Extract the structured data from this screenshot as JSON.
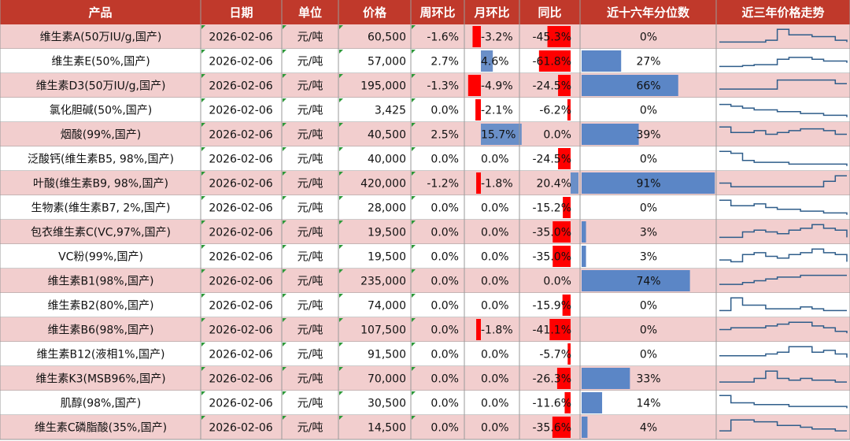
{
  "table": {
    "header": [
      "产品",
      "日期",
      "单位",
      "价格",
      "周环比",
      "月环比",
      "同比",
      "近十六年分位数",
      "近三年价格走势"
    ],
    "rows": [
      [
        "维生素A(50万IU/g,国产)",
        "2026-02-06",
        "元/吨",
        "60,500",
        "-1.6%",
        "-3.2%",
        "-45.3%",
        "0%"
      ],
      [
        "维生素E(50%,国产)",
        "2026-02-06",
        "元/吨",
        "57,000",
        "2.7%",
        "4.6%",
        "-61.8%",
        "27%"
      ],
      [
        "维生素D3(50万IU/g,国产)",
        "2026-02-06",
        "元/吨",
        "195,000",
        "-1.3%",
        "-4.9%",
        "-24.5%",
        "66%"
      ],
      [
        "氯化胆碱(50%,国产)",
        "2026-02-06",
        "元/吨",
        "3,425",
        "0.0%",
        "-2.1%",
        "-6.2%",
        "0%"
      ],
      [
        "烟酸(99%,国产)",
        "2026-02-06",
        "元/吨",
        "40,500",
        "2.5%",
        "15.7%",
        "0.0%",
        "39%"
      ],
      [
        "泛酸钙(维生素B5, 98%,国产)",
        "2026-02-06",
        "元/吨",
        "40,000",
        "0.0%",
        "0.0%",
        "-24.5%",
        "0%"
      ],
      [
        "叶酸(维生素B9, 98%,国产)",
        "2026-02-06",
        "元/吨",
        "420,000",
        "-1.2%",
        "-1.8%",
        "20.4%",
        "91%"
      ],
      [
        "生物素(维生素B7, 2%,国产)",
        "2026-02-06",
        "元/吨",
        "28,000",
        "0.0%",
        "0.0%",
        "-15.2%",
        "0%"
      ],
      [
        "包衣维生素C(VC,97%,国产)",
        "2026-02-06",
        "元/吨",
        "19,500",
        "0.0%",
        "0.0%",
        "-35.0%",
        "3%"
      ],
      [
        "VC粉(99%,国产)",
        "2026-02-06",
        "元/吨",
        "19,500",
        "0.0%",
        "0.0%",
        "-35.0%",
        "3%"
      ],
      [
        "维生素B1(98%,国产)",
        "2026-02-06",
        "元/吨",
        "235,000",
        "0.0%",
        "0.0%",
        "0.0%",
        "74%"
      ],
      [
        "维生素B2(80%,国产)",
        "2026-02-06",
        "元/吨",
        "74,000",
        "0.0%",
        "0.0%",
        "-15.9%",
        "0%"
      ],
      [
        "维生素B6(98%,国产)",
        "2026-02-06",
        "元/吨",
        "107,500",
        "0.0%",
        "-1.8%",
        "-41.1%",
        "0%"
      ],
      [
        "维生素B12(液相1%,国产)",
        "2026-02-06",
        "元/吨",
        "91,500",
        "0.0%",
        "0.0%",
        "-5.7%",
        "0%"
      ],
      [
        "维生素K3(MSB96%,国产)",
        "2026-02-06",
        "元/吨",
        "70,000",
        "0.0%",
        "0.0%",
        "-26.3%",
        "33%"
      ],
      [
        "肌醇(98%,国产)",
        "2026-02-06",
        "元/吨",
        "30,500",
        "0.0%",
        "0.0%",
        "-11.6%",
        "14%"
      ],
      [
        "维生素C磷脂酸(35%,国产)",
        "2026-02-06",
        "元/吨",
        "14,500",
        "0.0%",
        "0.0%",
        "-35.6%",
        "4%"
      ]
    ],
    "trends": [
      [
        0.2,
        0.2,
        0.2,
        0.2,
        0.3,
        0.9,
        0.6,
        0.6,
        0.5,
        0.5,
        0.3,
        0.2
      ],
      [
        0.2,
        0.2,
        0.25,
        0.3,
        0.3,
        0.6,
        0.7,
        0.7,
        0.6,
        0.5,
        0.5,
        0.4
      ],
      [
        0.3,
        0.3,
        0.3,
        0.3,
        0.3,
        0.8,
        0.8,
        0.8,
        0.8,
        0.8,
        0.6,
        0.6
      ],
      [
        0.8,
        0.7,
        0.6,
        0.5,
        0.5,
        0.4,
        0.4,
        0.3,
        0.3,
        0.2,
        0.2,
        0.1
      ],
      [
        0.9,
        0.6,
        0.6,
        0.7,
        0.5,
        0.6,
        0.7,
        0.8,
        0.8,
        0.7,
        0.5,
        0.5
      ],
      [
        0.9,
        0.8,
        0.4,
        0.3,
        0.3,
        0.3,
        0.2,
        0.2,
        0.2,
        0.2,
        0.2,
        0.1
      ],
      [
        0.5,
        0.3,
        0.3,
        0.3,
        0.3,
        0.3,
        0.3,
        0.3,
        0.3,
        0.6,
        0.9,
        0.9
      ],
      [
        0.9,
        0.6,
        0.6,
        0.7,
        0.5,
        0.4,
        0.4,
        0.3,
        0.3,
        0.2,
        0.2,
        0.1
      ],
      [
        0.2,
        0.2,
        0.5,
        0.6,
        0.5,
        0.4,
        0.6,
        0.7,
        0.9,
        0.7,
        0.6,
        0.2
      ],
      [
        0.3,
        0.2,
        0.6,
        0.7,
        0.5,
        0.4,
        0.6,
        0.7,
        0.9,
        0.7,
        0.6,
        0.2
      ],
      [
        0.3,
        0.3,
        0.4,
        0.5,
        0.6,
        0.7,
        0.7,
        0.8,
        0.8,
        0.8,
        0.8,
        0.8
      ],
      [
        0.2,
        0.9,
        0.5,
        0.5,
        0.3,
        0.3,
        0.3,
        0.4,
        0.3,
        0.2,
        0.2,
        0.2
      ],
      [
        0.5,
        0.6,
        0.6,
        0.6,
        0.7,
        0.8,
        0.9,
        0.9,
        0.7,
        0.6,
        0.4,
        0.3
      ],
      [
        0.4,
        0.4,
        0.4,
        0.4,
        0.5,
        0.6,
        0.9,
        0.9,
        0.6,
        0.7,
        0.5,
        0.3
      ],
      [
        0.3,
        0.3,
        0.3,
        0.5,
        0.9,
        0.5,
        0.4,
        0.5,
        0.4,
        0.4,
        0.3,
        0.3
      ],
      [
        0.9,
        0.5,
        0.5,
        0.4,
        0.4,
        0.4,
        0.3,
        0.3,
        0.3,
        0.3,
        0.3,
        0.2
      ],
      [
        0.3,
        0.9,
        0.9,
        0.8,
        0.8,
        0.6,
        0.6,
        0.5,
        0.4,
        0.4,
        0.3,
        0.3
      ]
    ]
  }
}
